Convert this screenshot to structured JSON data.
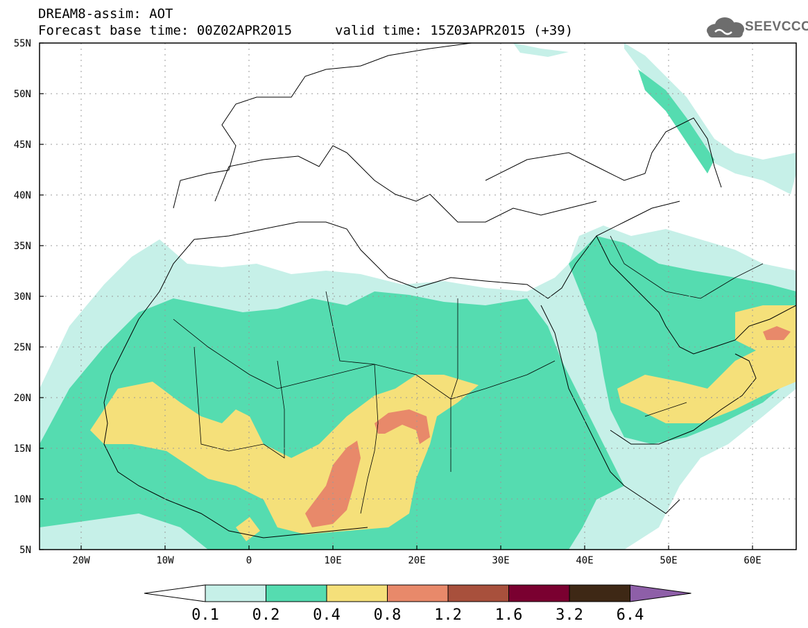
{
  "header": {
    "title": "DREAM8-assim: AOT",
    "base_time": "Forecast base time: 00Z02APR2015",
    "valid_time": "valid time: 15Z03APR2015 (+39)"
  },
  "logo": {
    "text": "SEEVCCC",
    "icon": "cloud-icon",
    "color": "#6d6d6d"
  },
  "map": {
    "projection": "lat-lon",
    "lon_range": [
      -25,
      65
    ],
    "lat_range": [
      5,
      55
    ],
    "lat_labels": [
      "55N",
      "50N",
      "45N",
      "40N",
      "35N",
      "30N",
      "25N",
      "20N",
      "15N",
      "10N",
      "5N"
    ],
    "lon_labels": [
      "20W",
      "10W",
      "0",
      "10E",
      "20E",
      "30E",
      "40E",
      "50E",
      "60E"
    ],
    "grid": "dotted"
  },
  "colorbar": {
    "labels": [
      "0.1",
      "0.2",
      "0.4",
      "0.8",
      "1.2",
      "1.6",
      "3.2",
      "6.4"
    ],
    "colors": [
      "#ffffff",
      "#c6f0e8",
      "#55dcb0",
      "#f5e07a",
      "#e8896a",
      "#a8503c",
      "#7a0030",
      "#3e2815",
      "#8e5fa8"
    ]
  }
}
